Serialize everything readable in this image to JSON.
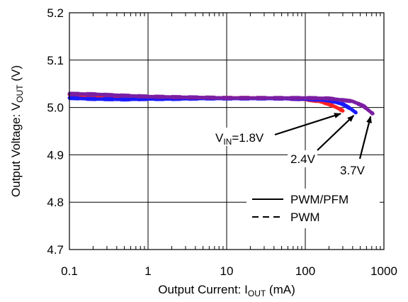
{
  "chart_data": {
    "type": "line",
    "x_scale": "log",
    "xlim": [
      0.1,
      1000
    ],
    "ylim": [
      4.7,
      5.2
    ],
    "x_ticks": [
      {
        "v": 0.1,
        "label": "0.1"
      },
      {
        "v": 1,
        "label": "1"
      },
      {
        "v": 10,
        "label": "10"
      },
      {
        "v": 100,
        "label": "100"
      },
      {
        "v": 1000,
        "label": "1000"
      }
    ],
    "y_ticks": [
      {
        "v": 4.7,
        "label": "4.7"
      },
      {
        "v": 4.8,
        "label": "4.8"
      },
      {
        "v": 4.9,
        "label": "4.9"
      },
      {
        "v": 5.0,
        "label": "5.0"
      },
      {
        "v": 5.1,
        "label": "5.1"
      },
      {
        "v": 5.2,
        "label": "5.2"
      }
    ],
    "grid": true,
    "xlabel": {
      "main": "Output Current: I",
      "sub": "OUT",
      "unit": " (mA)"
    },
    "ylabel": {
      "main": "Output Voltage: V",
      "sub": "OUT",
      "unit": " (V)"
    },
    "series": [
      {
        "color": "#ff2020",
        "points": [
          [
            0.1,
            5.027
          ],
          [
            0.2,
            5.025
          ],
          [
            0.5,
            5.023
          ],
          [
            1,
            5.021
          ],
          [
            2,
            5.02
          ],
          [
            5,
            5.02
          ],
          [
            10,
            5.02
          ],
          [
            20,
            5.02
          ],
          [
            50,
            5.019
          ],
          [
            100,
            5.017
          ],
          [
            150,
            5.013
          ],
          [
            200,
            5.007
          ],
          [
            250,
            5.0
          ],
          [
            300,
            4.993
          ]
        ]
      },
      {
        "color": "#1a1aff",
        "points": [
          [
            0.1,
            5.02
          ],
          [
            0.2,
            5.018
          ],
          [
            0.5,
            5.017
          ],
          [
            1,
            5.018
          ],
          [
            2,
            5.018
          ],
          [
            5,
            5.019
          ],
          [
            10,
            5.019
          ],
          [
            20,
            5.019
          ],
          [
            50,
            5.019
          ],
          [
            100,
            5.018
          ],
          [
            200,
            5.015
          ],
          [
            300,
            5.007
          ],
          [
            380,
            4.997
          ],
          [
            440,
            4.989
          ]
        ]
      },
      {
        "color": "#7b1fa2",
        "points": [
          [
            0.1,
            5.029
          ],
          [
            0.2,
            5.028
          ],
          [
            0.5,
            5.025
          ],
          [
            1,
            5.023
          ],
          [
            2,
            5.022
          ],
          [
            5,
            5.021
          ],
          [
            10,
            5.02
          ],
          [
            20,
            5.02
          ],
          [
            50,
            5.02
          ],
          [
            100,
            5.02
          ],
          [
            200,
            5.019
          ],
          [
            400,
            5.013
          ],
          [
            550,
            5.003
          ],
          [
            650,
            4.993
          ],
          [
            720,
            4.987
          ]
        ]
      }
    ],
    "annotations": [
      {
        "main": "V",
        "sub": "IN",
        "tail": "=1.8V",
        "point": [
          300,
          4.993
        ]
      },
      {
        "main": "2.4V",
        "sub": "",
        "tail": "",
        "point": [
          440,
          4.989
        ]
      },
      {
        "main": "3.7V",
        "sub": "",
        "tail": "",
        "point": [
          720,
          4.987
        ]
      }
    ],
    "legend": {
      "position": "bottom-right",
      "entries": [
        {
          "label": "PWM/PFM",
          "style": "solid"
        },
        {
          "label": "PWM",
          "style": "dashed"
        }
      ]
    }
  }
}
